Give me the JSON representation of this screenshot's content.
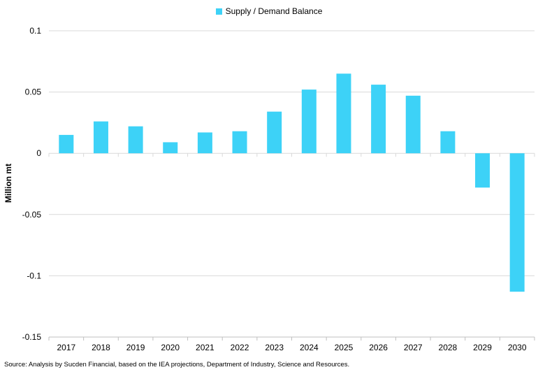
{
  "chart_data": {
    "type": "bar",
    "title": "",
    "categories": [
      "2017",
      "2018",
      "2019",
      "2020",
      "2021",
      "2022",
      "2023",
      "2024",
      "2025",
      "2026",
      "2027",
      "2028",
      "2029",
      "2030"
    ],
    "series": [
      {
        "name": "Supply / Demand Balance",
        "values": [
          0.015,
          0.026,
          0.022,
          0.009,
          0.017,
          0.018,
          0.034,
          0.052,
          0.065,
          0.056,
          0.047,
          0.018,
          -0.028,
          -0.113
        ],
        "color": "#3dd2f7"
      }
    ],
    "ylabel": "Million mt",
    "xlabel": "",
    "ylim": [
      -0.15,
      0.1
    ],
    "yticks": [
      -0.15,
      -0.1,
      -0.05,
      0,
      0.05,
      0.1
    ],
    "ytick_labels": [
      "-0.15",
      "-0.1",
      "-0.05",
      "0",
      "0.05",
      "0.1"
    ],
    "grid": true,
    "legend_position": "top-center"
  },
  "source_note": "Source: Analysis by Sucden Financial, based on the IEA projections, Department of Industry, Science and Resources."
}
